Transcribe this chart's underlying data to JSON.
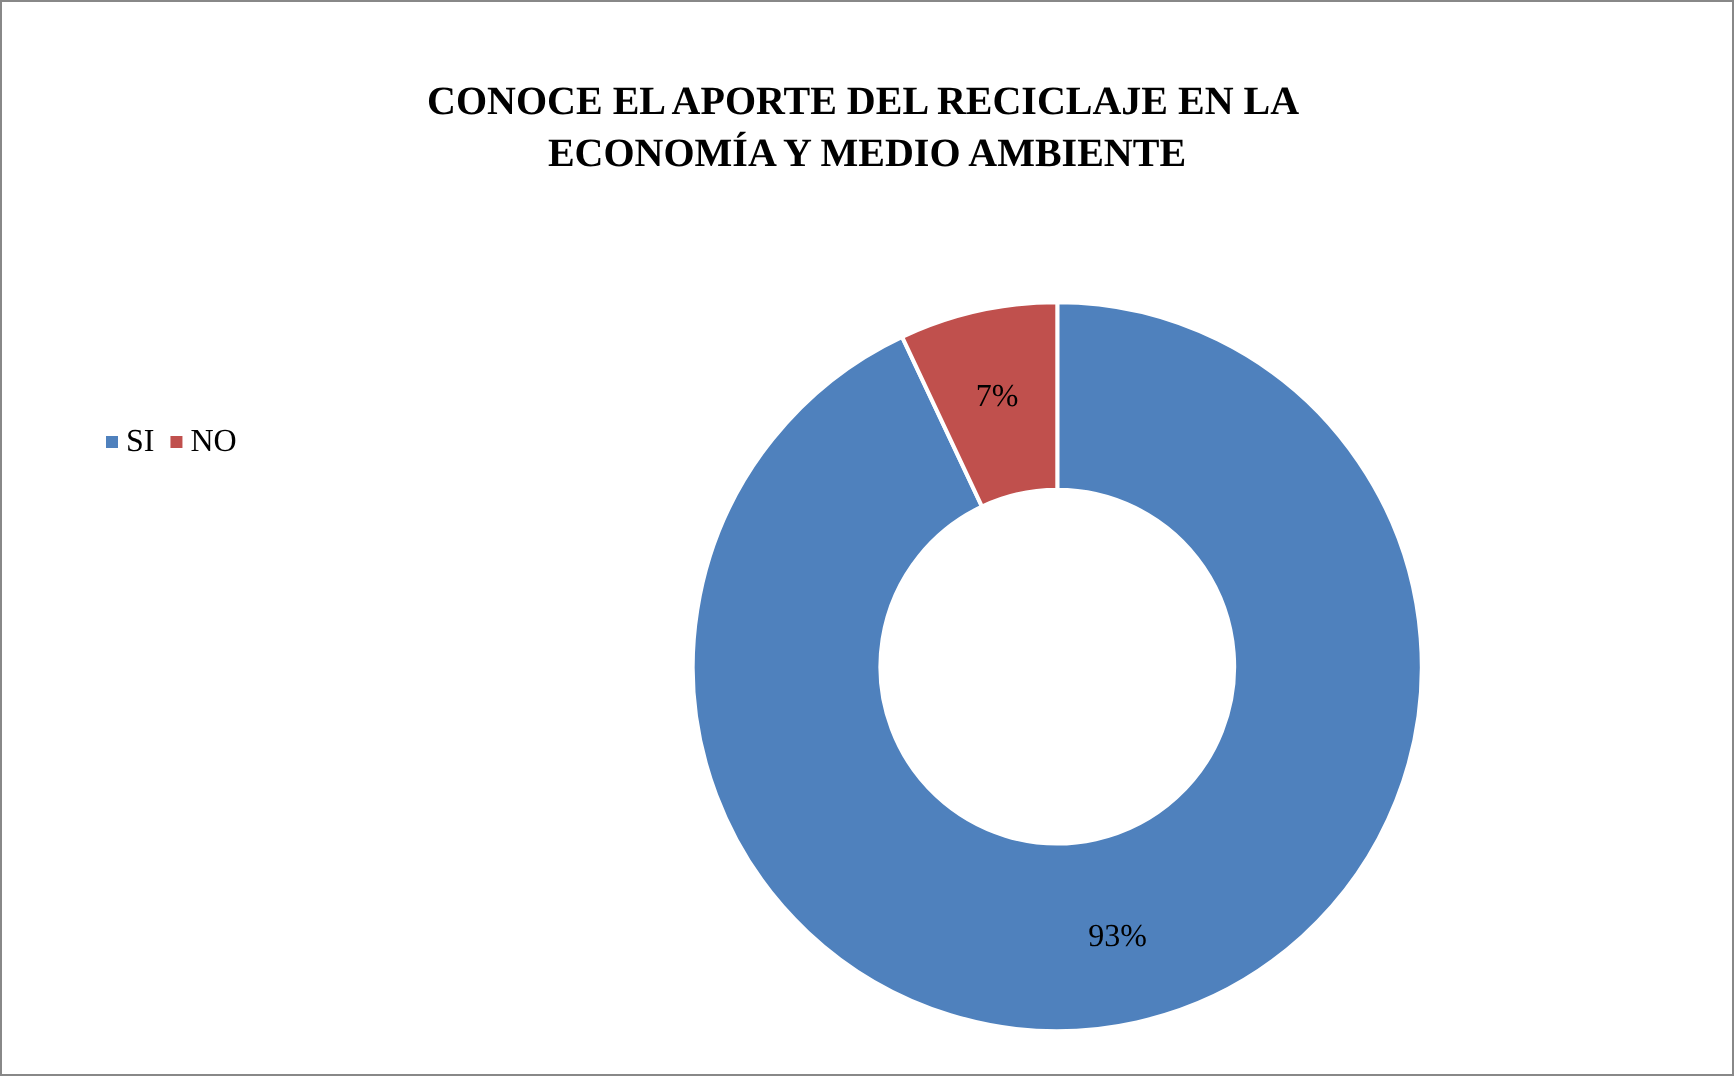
{
  "chart_data": {
    "type": "donut",
    "title": "CONOCE EL APORTE DEL RECICLAJE EN LA ECONOMÍA Y MEDIO AMBIENTE",
    "categories": [
      "SI",
      "NO"
    ],
    "values": [
      93,
      7
    ],
    "colors": [
      "#4f81bd",
      "#c0504d"
    ],
    "value_labels": [
      "93%",
      "7%"
    ],
    "legend": "left"
  }
}
